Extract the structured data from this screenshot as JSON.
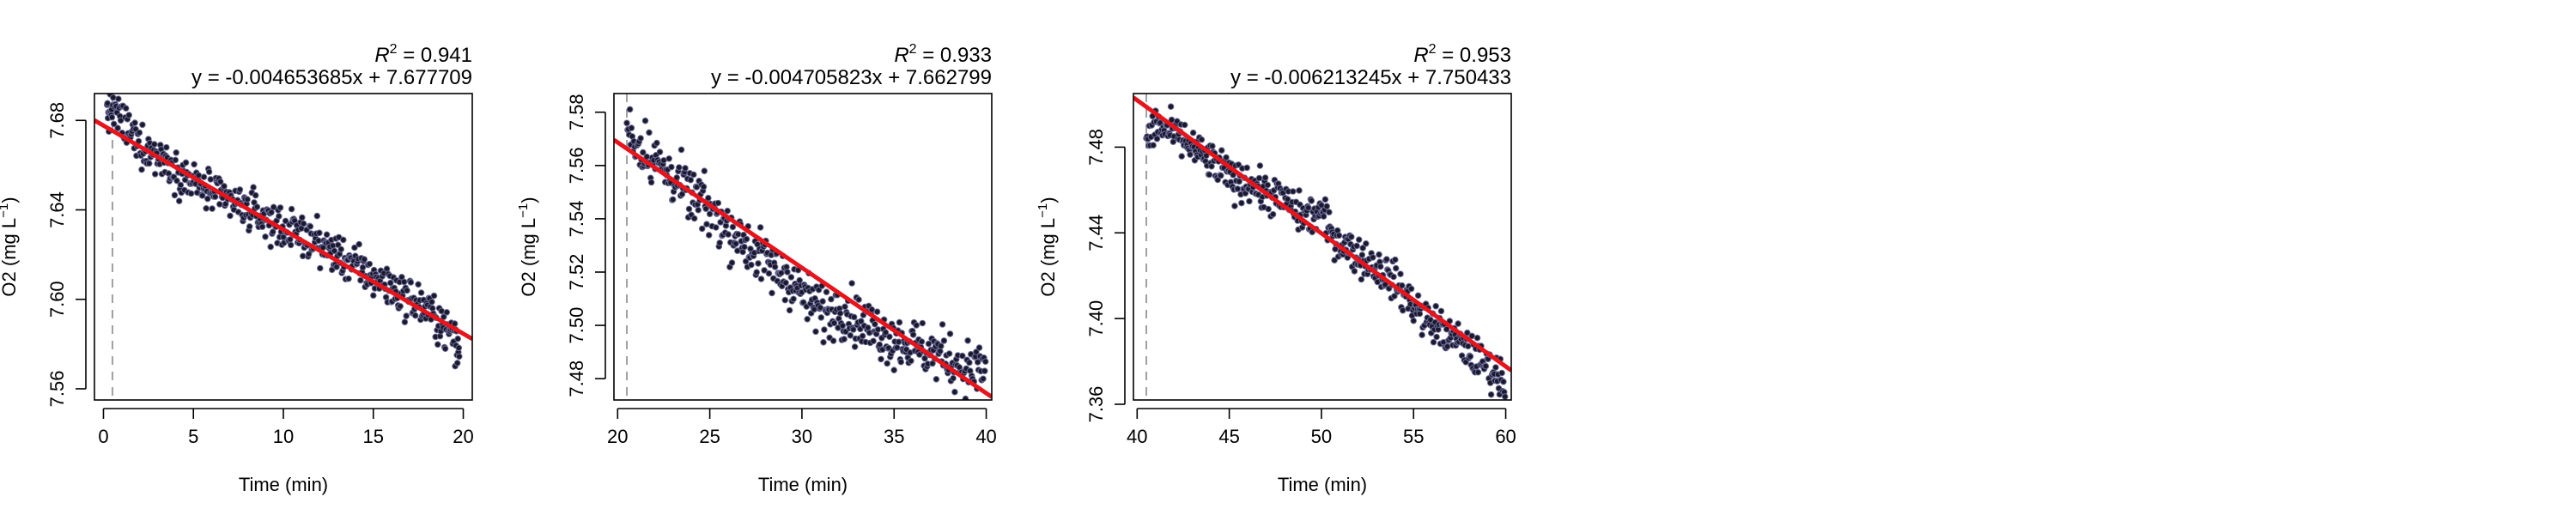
{
  "chart_data": [
    {
      "type": "scatter",
      "title": "",
      "xlabel": "Time (min)",
      "ylabel_main": "O2 (mg L",
      "ylabel_sup": "−1",
      "ylabel_close": ")",
      "xlim": [
        -0.5,
        20.5
      ],
      "ylim": [
        7.555,
        7.692
      ],
      "xticks": [
        0,
        5,
        10,
        15,
        20
      ],
      "xtick_labels": [
        "0",
        "5",
        "10",
        "15",
        "20"
      ],
      "yticks": [
        7.56,
        7.6,
        7.64,
        7.68
      ],
      "ytick_labels": [
        "7.56",
        "7.60",
        "7.64",
        "7.68"
      ],
      "r2_label": "R",
      "r2_sup": "2",
      "r2_value": " = 0.941",
      "equation": "y = -0.004653685x + 7.677709",
      "slope": -0.004653685,
      "intercept": 7.677709,
      "marker_x": 0.5,
      "series": [
        {
          "x": [
            0.2,
            0.5,
            1,
            1.5,
            2,
            2.5,
            3,
            3.5,
            4,
            4.5,
            5,
            5.5,
            6,
            6.5,
            7,
            7.5,
            8,
            8.5,
            9,
            9.5,
            10,
            10.5,
            11,
            11.5,
            12,
            12.5,
            13,
            13.5,
            14,
            14.5,
            15,
            15.5,
            16,
            16.5,
            17,
            17.5,
            18,
            18.5,
            19,
            19.5,
            19.8
          ],
          "y": [
            7.684,
            7.685,
            7.68,
            7.674,
            7.67,
            7.667,
            7.664,
            7.662,
            7.658,
            7.655,
            7.652,
            7.65,
            7.648,
            7.645,
            7.644,
            7.642,
            7.64,
            7.638,
            7.636,
            7.634,
            7.632,
            7.63,
            7.629,
            7.627,
            7.625,
            7.622,
            7.62,
            7.618,
            7.615,
            7.612,
            7.61,
            7.608,
            7.605,
            7.603,
            7.6,
            7.598,
            7.595,
            7.592,
            7.587,
            7.583,
            7.575
          ],
          "spread": 0.0045
        }
      ]
    },
    {
      "type": "scatter",
      "title": "",
      "xlabel": "Time (min)",
      "ylabel_main": "O2 (mg L",
      "ylabel_sup": "−1",
      "ylabel_close": ")",
      "xlim": [
        19.8,
        40.3
      ],
      "ylim": [
        7.472,
        7.587
      ],
      "xticks": [
        20,
        25,
        30,
        35,
        40
      ],
      "xtick_labels": [
        "20",
        "25",
        "30",
        "35",
        "40"
      ],
      "yticks": [
        7.48,
        7.5,
        7.52,
        7.54,
        7.56,
        7.58
      ],
      "ytick_labels": [
        "7.48",
        "7.50",
        "7.52",
        "7.54",
        "7.56",
        "7.58"
      ],
      "r2_label": "R",
      "r2_sup": "2",
      "r2_value": " = 0.933",
      "equation": "y = -0.004705823x + 7.662799",
      "slope": -0.004705823,
      "intercept": 7.662799,
      "marker_x": 20.5,
      "series": [
        {
          "x": [
            20.5,
            21,
            21.5,
            22,
            22.5,
            23,
            23.5,
            24,
            24.5,
            25,
            25.5,
            26,
            26.5,
            27,
            27.5,
            28,
            28.5,
            29,
            29.5,
            30,
            30.5,
            31,
            31.5,
            32,
            32.5,
            33,
            33.5,
            34,
            34.5,
            35,
            35.5,
            36,
            36.5,
            37,
            37.5,
            38,
            38.5,
            39,
            39.5,
            40
          ],
          "y": [
            7.575,
            7.568,
            7.566,
            7.563,
            7.558,
            7.556,
            7.552,
            7.548,
            7.546,
            7.543,
            7.54,
            7.536,
            7.534,
            7.53,
            7.527,
            7.524,
            7.521,
            7.519,
            7.516,
            7.512,
            7.508,
            7.506,
            7.504,
            7.507,
            7.505,
            7.502,
            7.5,
            7.498,
            7.496,
            7.495,
            7.494,
            7.493,
            7.491,
            7.49,
            7.489,
            7.487,
            7.485,
            7.484,
            7.483,
            7.485
          ],
          "spread": 0.005
        }
      ]
    },
    {
      "type": "scatter",
      "title": "",
      "xlabel": "Time (min)",
      "ylabel_main": "O2 (mg L",
      "ylabel_sup": "−1",
      "ylabel_close": ")",
      "xlim": [
        39.8,
        60.3
      ],
      "ylim": [
        7.362,
        7.505
      ],
      "xticks": [
        40,
        45,
        50,
        55,
        60
      ],
      "xtick_labels": [
        "40",
        "45",
        "50",
        "55",
        "60"
      ],
      "yticks": [
        7.36,
        7.4,
        7.44,
        7.48
      ],
      "ytick_labels": [
        "7.36",
        "7.40",
        "7.44",
        "7.48"
      ],
      "r2_label": "R",
      "r2_sup": "2",
      "r2_value": " = 0.953",
      "equation": "y = -0.006213245x + 7.750433",
      "slope": -0.006213245,
      "intercept": 7.750433,
      "marker_x": 40.5,
      "series": [
        {
          "x": [
            40.5,
            41,
            41.5,
            42,
            42.5,
            43,
            43.5,
            44,
            44.5,
            45,
            45.5,
            46,
            46.5,
            47,
            47.5,
            48,
            48.5,
            49,
            49.5,
            50,
            50.5,
            51,
            51.5,
            52,
            52.5,
            53,
            53.5,
            54,
            54.5,
            55,
            55.5,
            56,
            56.5,
            57,
            57.5,
            58,
            58.5,
            59,
            59.5,
            60
          ],
          "y": [
            7.482,
            7.49,
            7.488,
            7.486,
            7.483,
            7.48,
            7.476,
            7.473,
            7.47,
            7.466,
            7.463,
            7.465,
            7.461,
            7.458,
            7.457,
            7.455,
            7.451,
            7.448,
            7.448,
            7.45,
            7.44,
            7.436,
            7.433,
            7.429,
            7.427,
            7.424,
            7.421,
            7.417,
            7.411,
            7.407,
            7.401,
            7.398,
            7.395,
            7.391,
            7.389,
            7.385,
            7.381,
            7.378,
            7.374,
            7.37
          ],
          "spread": 0.0045
        }
      ]
    }
  ]
}
